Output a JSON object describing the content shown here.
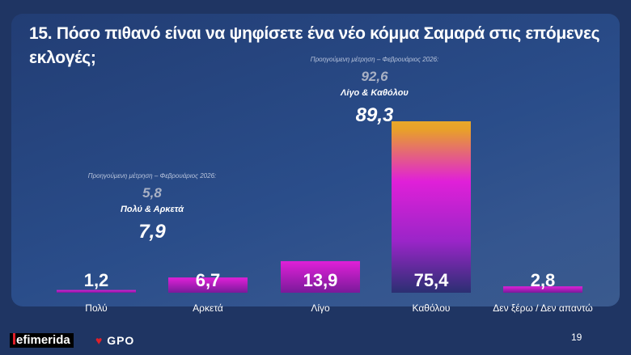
{
  "title": "15. Πόσο πιθανό είναι να ψηφίσετε ένα νέο κόμμα Σαμαρά στις επόμενες εκλογές;",
  "chart_data": {
    "type": "bar",
    "categories": [
      "Πολύ",
      "Αρκετά",
      "Λίγο",
      "Καθόλου",
      "Δεν ξέρω / Δεν απαντώ"
    ],
    "values": [
      1.2,
      6.7,
      13.9,
      75.4,
      2.8
    ],
    "value_labels": [
      "1,2",
      "6,7",
      "13,9",
      "75,4",
      "2,8"
    ],
    "ylim": [
      0,
      80
    ],
    "grid": false,
    "annotations": [
      {
        "prev_label": "Προηγούμενη μέτρηση – Φεβρουάριος 2026:",
        "prev_value": "5,8",
        "group_label": "Πολύ & Αρκετά",
        "group_value": "7,9"
      },
      {
        "prev_label": "Προηγούμενη μέτρηση – Φεβρουάριος 2026:",
        "prev_value": "92,6",
        "group_label": "Λίγο & Καθόλου",
        "group_value": "89,3"
      }
    ],
    "colors": {
      "magenta": "#e020d8",
      "orange": "#e8a82a",
      "purple": "#2b2f72"
    }
  },
  "footer": {
    "brand": "efimerida",
    "partner": "GPO",
    "page": "19"
  }
}
